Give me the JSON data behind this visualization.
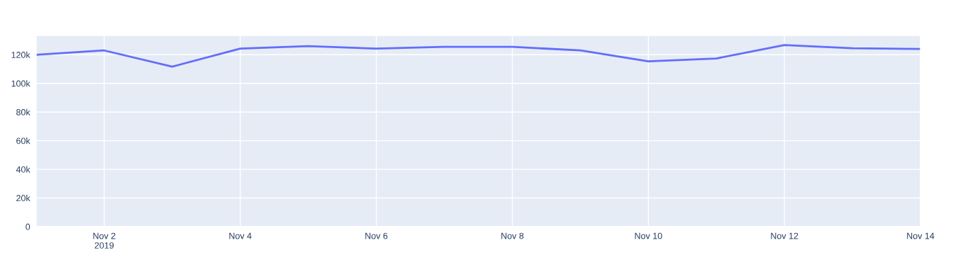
{
  "chart_data": {
    "type": "line",
    "x": [
      "2019-11-01",
      "2019-11-02",
      "2019-11-03",
      "2019-11-04",
      "2019-11-05",
      "2019-11-06",
      "2019-11-07",
      "2019-11-08",
      "2019-11-09",
      "2019-11-10",
      "2019-11-11",
      "2019-11-12",
      "2019-11-13",
      "2019-11-14"
    ],
    "series": [
      {
        "color": "#636efa",
        "values": [
          120000,
          123000,
          111700,
          124300,
          126000,
          124300,
          125500,
          125500,
          123000,
          115400,
          117400,
          126800,
          124500,
          124000
        ]
      }
    ],
    "xlim": [
      "2019-11-01",
      "2019-11-14"
    ],
    "xticks": [
      {
        "value": "2019-11-02",
        "label": "Nov 2\n2019"
      },
      {
        "value": "2019-11-04",
        "label": "Nov 4"
      },
      {
        "value": "2019-11-06",
        "label": "Nov 6"
      },
      {
        "value": "2019-11-08",
        "label": "Nov 8"
      },
      {
        "value": "2019-11-10",
        "label": "Nov 10"
      },
      {
        "value": "2019-11-12",
        "label": "Nov 12"
      },
      {
        "value": "2019-11-14",
        "label": "Nov 14"
      }
    ],
    "ylim": [
      0,
      133500
    ],
    "yticks": [
      0,
      {
        "value": 20000,
        "label": "20k"
      },
      {
        "value": 40000,
        "label": "40k"
      },
      {
        "value": 60000,
        "label": "60k"
      },
      {
        "value": 80000,
        "label": "80k"
      },
      {
        "value": 100000,
        "label": "100k"
      },
      {
        "value": 120000,
        "label": "120k"
      }
    ],
    "grid": true,
    "marker": "none",
    "line_style": "solid"
  }
}
